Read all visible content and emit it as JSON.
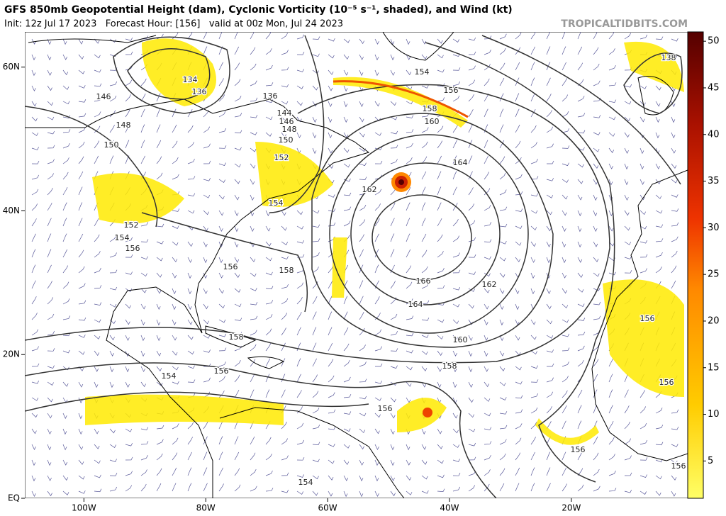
{
  "header": {
    "title": "GFS 850mb Geopotential Height (dam), Cyclonic Vorticity (10⁻⁵ s⁻¹, shaded), and Wind (kt)",
    "subtitle": "Init: 12z Jul 17 2023   Forecast Hour: [156]   valid at 00z Mon, Jul 24 2023",
    "source": "TROPICALTIDBITS.COM"
  },
  "map": {
    "xlim": [
      -109.7,
      -0.9
    ],
    "ylim": [
      0,
      64.9
    ],
    "xticks": [
      {
        "value": -100,
        "label": "100W"
      },
      {
        "value": -80,
        "label": "80W"
      },
      {
        "value": -60,
        "label": "60W"
      },
      {
        "value": -40,
        "label": "40W"
      },
      {
        "value": -20,
        "label": "20W"
      }
    ],
    "yticks": [
      {
        "value": 0,
        "label": "EQ"
      },
      {
        "value": 20,
        "label": "20N"
      },
      {
        "value": 40,
        "label": "40N"
      },
      {
        "value": 60,
        "label": "60N"
      }
    ],
    "contour_labels": [
      134,
      136,
      136,
      138,
      146,
      148,
      150,
      144,
      146,
      148,
      150,
      152,
      154,
      154,
      156,
      158,
      160,
      162,
      164,
      152,
      154,
      156,
      156,
      158,
      166,
      162,
      164,
      158,
      160,
      158,
      156,
      154,
      156,
      156,
      156,
      156,
      156,
      154
    ]
  },
  "colorbar": {
    "lim": [
      1,
      51
    ],
    "ticks": [
      5,
      10,
      15,
      20,
      25,
      30,
      35,
      40,
      45,
      50
    ]
  }
}
